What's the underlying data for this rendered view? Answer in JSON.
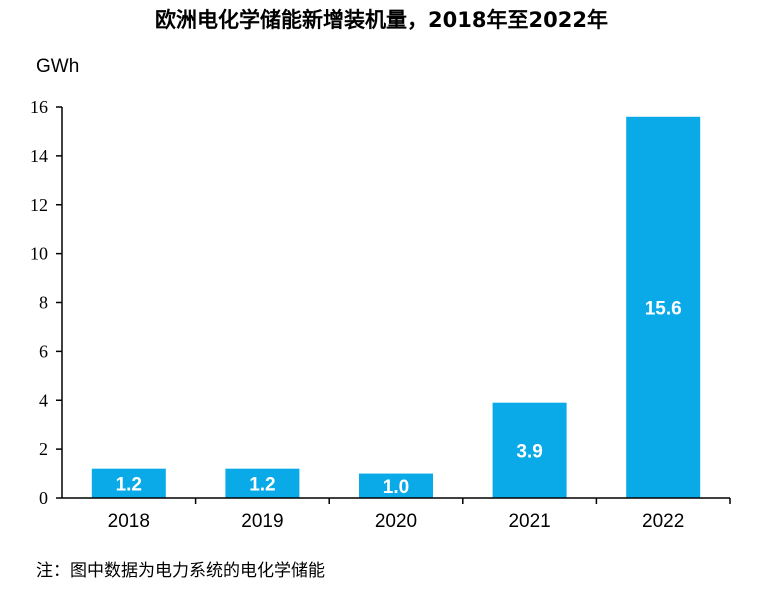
{
  "title": "欧洲电化学储能新增装机量，2018年至2022年",
  "unit": "GWh",
  "note": "注：图中数据为电力系统的电化学储能",
  "colors": {
    "bar": "#0aaae8",
    "axis": "#000000",
    "data_label": "#ffffff"
  },
  "chart_data": {
    "type": "bar",
    "title": "欧洲电化学储能新增装机量，2018年至2022年",
    "ylabel": "GWh",
    "xlabel": "",
    "categories": [
      "2018",
      "2019",
      "2020",
      "2021",
      "2022"
    ],
    "values": [
      1.2,
      1.2,
      1.0,
      3.9,
      15.6
    ],
    "data_labels": [
      "1.2",
      "1.2",
      "1.0",
      "3.9",
      "15.6"
    ],
    "yticks": [
      0,
      2,
      4,
      6,
      8,
      10,
      12,
      14,
      16
    ],
    "ylim": [
      0,
      16
    ],
    "grid": false,
    "legend": "none"
  }
}
